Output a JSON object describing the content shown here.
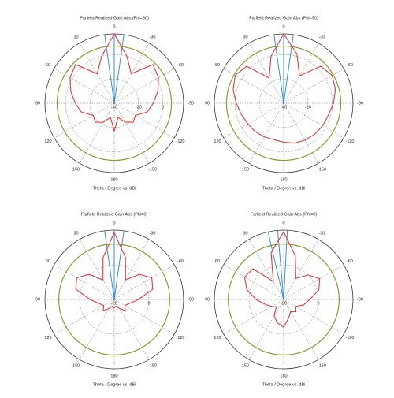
{
  "chart_data": [
    {
      "type": "polar",
      "title": "Farfield Realized Gain Abs (Phi=90)",
      "xlabel": "Theta / Degree vs. dBi",
      "theta": [
        -180,
        -165,
        -150,
        -135,
        -120,
        -105,
        -90,
        -75,
        -60,
        -45,
        -30,
        -15,
        0,
        15,
        30,
        45,
        60,
        75,
        90,
        105,
        120,
        135,
        150,
        165
      ],
      "values": [
        -17,
        -28,
        -22,
        -18,
        -20,
        -12,
        -8,
        -3,
        2,
        5,
        -12,
        0,
        17,
        0,
        -12,
        5,
        2,
        -3,
        -8,
        -12,
        -20,
        -18,
        -22,
        -28
      ],
      "color": "#e03a3a",
      "thetaticks": [
        0,
        30,
        60,
        90,
        120,
        150,
        180,
        -150,
        -120,
        -90,
        -60,
        -30
      ],
      "rlim": [
        -40,
        17
      ],
      "rticks": [
        -40,
        -20,
        0
      ],
      "reference_circle": 7,
      "reference_color": "#8a9a30",
      "beam_lines": [
        -8,
        0,
        8
      ],
      "beam_color": "#3a8fd8"
    },
    {
      "type": "polar",
      "title": "Farfield Realized Gain Abs (Phi=90)",
      "xlabel": "Theta / Degree vs. dBi",
      "theta": [
        -180,
        -165,
        -150,
        -135,
        -120,
        -105,
        -90,
        -75,
        -60,
        -45,
        -30,
        -15,
        0,
        15,
        30,
        45,
        60,
        75,
        90,
        105,
        120,
        135,
        150,
        165
      ],
      "values": [
        -8,
        -6,
        -5,
        -4,
        -3,
        -2,
        1,
        4,
        6,
        3,
        -14,
        2,
        17,
        0,
        -16,
        3,
        6,
        3,
        -1,
        -4,
        -6,
        -7,
        -8,
        -9
      ],
      "color": "#e03a3a",
      "thetaticks": [
        0,
        30,
        60,
        90,
        120,
        150,
        180,
        -150,
        -120,
        -90,
        -60,
        -30
      ],
      "rlim": [
        -40,
        17
      ],
      "rticks": [
        -40,
        -20,
        0
      ],
      "reference_circle": 7,
      "reference_color": "#8a9a30",
      "beam_lines": [
        -8,
        0,
        8
      ],
      "beam_color": "#3a8fd8"
    },
    {
      "type": "polar",
      "title": "Farfield Realized Gain Abs (Phi=0)",
      "xlabel": "Theta / Degree vs. dBi",
      "theta": [
        -180,
        -165,
        -150,
        -135,
        -120,
        -105,
        -90,
        -75,
        -60,
        -45,
        -30,
        -15,
        0,
        15,
        30,
        45,
        60,
        75,
        90,
        105,
        120,
        135,
        150,
        165
      ],
      "values": [
        -15,
        -16,
        -14,
        -11,
        -13,
        -11,
        -6,
        3,
        5,
        0.5,
        -7,
        5,
        18.6,
        5,
        -7,
        0.5,
        5,
        3,
        -6,
        -11,
        -13,
        -11,
        -14,
        -16
      ],
      "color": "#e03a3a",
      "thetaticks": [
        0,
        30,
        60,
        90,
        120,
        150,
        180,
        -150,
        -120,
        -90,
        -60,
        -30
      ],
      "rlim": [
        -20,
        20
      ],
      "rticks": [
        -20,
        0
      ],
      "reference_circle": 12,
      "reference_color": "#8a9a30",
      "beam_lines": [
        -8,
        0,
        8
      ],
      "beam_color": "#3a8fd8"
    },
    {
      "type": "polar",
      "title": "Farfield Realized Gain Abs (Phi=0)",
      "xlabel": "Theta / Degree vs. dBi",
      "theta": [
        -180,
        -165,
        -150,
        -135,
        -120,
        -105,
        -90,
        -75,
        -60,
        -45,
        -30,
        -15,
        0,
        15,
        30,
        45,
        60,
        75,
        90,
        105,
        120,
        135,
        150,
        165
      ],
      "values": [
        -4,
        -9,
        -12,
        -10,
        -12,
        -8,
        -5,
        1,
        4,
        0,
        -6,
        6,
        19,
        8,
        -8,
        5,
        6,
        2,
        -4,
        -9,
        -12,
        -14,
        -9,
        -6
      ],
      "color": "#e03a3a",
      "thetaticks": [
        0,
        30,
        60,
        90,
        120,
        150,
        180,
        -150,
        -120,
        -90,
        -60,
        -30
      ],
      "rlim": [
        -20,
        20
      ],
      "rticks": [
        -20,
        0
      ],
      "reference_circle": 12,
      "reference_color": "#8a9a30",
      "beam_lines": [
        -3,
        5,
        13
      ],
      "beam_color": "#3a8fd8"
    }
  ]
}
